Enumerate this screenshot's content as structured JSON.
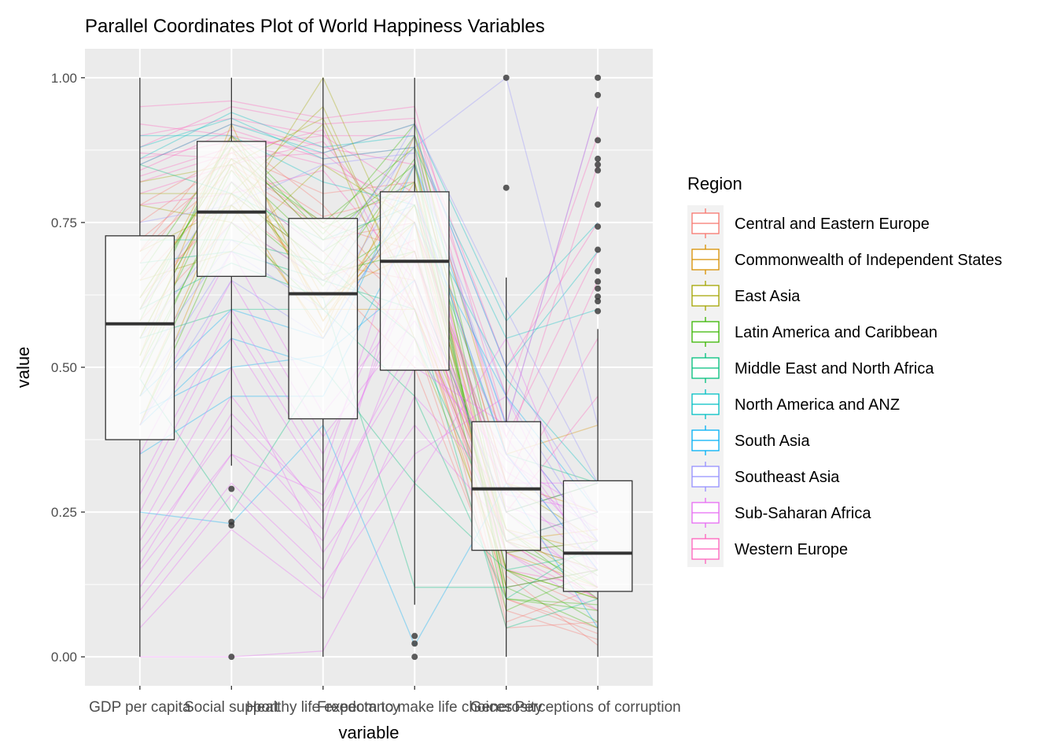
{
  "chart_data": {
    "type": "parallel coordinates + boxplot",
    "title": "Parallel Coordinates Plot of World Happiness Variables",
    "xlabel": "variable",
    "ylabel": "value",
    "ylim": [
      -0.05,
      1.05
    ],
    "y_ticks": [
      "0.00",
      "0.25",
      "0.50",
      "0.75",
      "1.00"
    ],
    "y_tick_values": [
      0,
      0.25,
      0.5,
      0.75,
      1.0
    ],
    "categories": [
      "GDP per capita",
      "Social support",
      "Healthy life expectancy",
      "Freedom to make life choices",
      "Generosity",
      "Perceptions of corruption"
    ],
    "grid": true,
    "legend": {
      "title": "Region",
      "placement": "right",
      "entries": [
        {
          "name": "Central and Eastern Europe",
          "color": "#F8766D"
        },
        {
          "name": "Commonwealth of Independent States",
          "color": "#D89000"
        },
        {
          "name": "East Asia",
          "color": "#A3A500"
        },
        {
          "name": "Latin America and Caribbean",
          "color": "#39B600"
        },
        {
          "name": "Middle East and North Africa",
          "color": "#00BF7D"
        },
        {
          "name": "North America and ANZ",
          "color": "#00BFC4"
        },
        {
          "name": "South Asia",
          "color": "#00B0F6"
        },
        {
          "name": "Southeast Asia",
          "color": "#9590FF"
        },
        {
          "name": "Sub-Saharan Africa",
          "color": "#E76BF3"
        },
        {
          "name": "Western Europe",
          "color": "#FF62BC"
        }
      ]
    },
    "boxplots": [
      {
        "variable": "GDP per capita",
        "min": 0.0,
        "q1": 0.375,
        "median": 0.575,
        "q3": 0.727,
        "max": 1.0,
        "outliers": []
      },
      {
        "variable": "Social support",
        "min": 0.33,
        "q1": 0.657,
        "median": 0.768,
        "q3": 0.89,
        "max": 1.0,
        "outliers": [
          0.29,
          0.233,
          0.227,
          0.0
        ]
      },
      {
        "variable": "Healthy life expectancy",
        "min": 0.0,
        "q1": 0.411,
        "median": 0.627,
        "q3": 0.757,
        "max": 1.0,
        "outliers": []
      },
      {
        "variable": "Freedom to make life choices",
        "min": 0.09,
        "q1": 0.495,
        "median": 0.683,
        "q3": 0.803,
        "max": 1.0,
        "outliers": [
          0.036,
          0.023,
          0.0
        ]
      },
      {
        "variable": "Generosity",
        "min": 0.0,
        "q1": 0.184,
        "median": 0.29,
        "q3": 0.406,
        "max": 0.655,
        "outliers": [
          1.0,
          0.81
        ]
      },
      {
        "variable": "Perceptions of corruption",
        "min": 0.0,
        "q1": 0.113,
        "median": 0.179,
        "q3": 0.304,
        "max": 0.566,
        "outliers": [
          1.0,
          0.97,
          0.892,
          0.86,
          0.85,
          0.84,
          0.781,
          0.743,
          0.703,
          0.666,
          0.648,
          0.636,
          0.622,
          0.614,
          0.597
        ]
      }
    ],
    "series": [
      {
        "name": "Western Europe",
        "values": [
          0.88,
          0.95,
          0.92,
          0.93,
          0.35,
          0.85
        ]
      },
      {
        "name": "Western Europe",
        "values": [
          0.9,
          0.93,
          0.9,
          0.9,
          0.45,
          0.9
        ]
      },
      {
        "name": "Western Europe",
        "values": [
          0.85,
          0.92,
          0.88,
          0.85,
          0.3,
          0.65
        ]
      },
      {
        "name": "Western Europe",
        "values": [
          0.83,
          0.88,
          0.9,
          0.8,
          0.25,
          0.45
        ]
      },
      {
        "name": "Western Europe",
        "values": [
          0.92,
          0.9,
          0.87,
          0.92,
          0.5,
          0.75
        ]
      },
      {
        "name": "Western Europe",
        "values": [
          0.86,
          0.89,
          0.85,
          0.78,
          0.2,
          0.25
        ]
      },
      {
        "name": "Western Europe",
        "values": [
          0.8,
          0.85,
          0.89,
          0.7,
          0.15,
          0.12
        ]
      },
      {
        "name": "Western Europe",
        "values": [
          0.95,
          0.96,
          0.93,
          0.95,
          0.4,
          0.95
        ]
      },
      {
        "name": "Western Europe",
        "values": [
          0.84,
          0.91,
          0.86,
          0.88,
          0.38,
          0.7
        ]
      },
      {
        "name": "Western Europe",
        "values": [
          0.82,
          0.87,
          0.91,
          0.6,
          0.18,
          0.1
        ]
      },
      {
        "name": "Western Europe",
        "values": [
          0.87,
          0.86,
          0.87,
          0.75,
          0.28,
          0.55
        ]
      },
      {
        "name": "Western Europe",
        "values": [
          0.78,
          0.8,
          0.84,
          0.65,
          0.2,
          0.15
        ]
      },
      {
        "name": "North America and ANZ",
        "values": [
          0.88,
          0.93,
          0.86,
          0.88,
          0.55,
          0.6
        ]
      },
      {
        "name": "North America and ANZ",
        "values": [
          0.86,
          0.94,
          0.88,
          0.9,
          0.5,
          0.7
        ]
      },
      {
        "name": "North America and ANZ",
        "values": [
          0.85,
          0.92,
          0.87,
          0.92,
          0.58,
          0.75
        ]
      },
      {
        "name": "North America and ANZ",
        "values": [
          0.9,
          0.9,
          0.82,
          0.78,
          0.48,
          0.3
        ]
      },
      {
        "name": "Central and Eastern Europe",
        "values": [
          0.72,
          0.85,
          0.75,
          0.7,
          0.1,
          0.05
        ]
      },
      {
        "name": "Central and Eastern Europe",
        "values": [
          0.68,
          0.88,
          0.72,
          0.75,
          0.15,
          0.08
        ]
      },
      {
        "name": "Central and Eastern Europe",
        "values": [
          0.7,
          0.9,
          0.78,
          0.6,
          0.2,
          0.1
        ]
      },
      {
        "name": "Central and Eastern Europe",
        "values": [
          0.75,
          0.86,
          0.76,
          0.8,
          0.12,
          0.15
        ]
      },
      {
        "name": "Central and Eastern Europe",
        "values": [
          0.65,
          0.82,
          0.7,
          0.55,
          0.08,
          0.03
        ]
      },
      {
        "name": "Central and Eastern Europe",
        "values": [
          0.6,
          0.8,
          0.68,
          0.65,
          0.05,
          0.06
        ]
      },
      {
        "name": "Central and Eastern Europe",
        "values": [
          0.78,
          0.87,
          0.8,
          0.82,
          0.18,
          0.2
        ]
      },
      {
        "name": "Central and Eastern Europe",
        "values": [
          0.62,
          0.78,
          0.66,
          0.5,
          0.1,
          0.04
        ]
      },
      {
        "name": "Central and Eastern Europe",
        "values": [
          0.58,
          0.75,
          0.65,
          0.72,
          0.06,
          0.12
        ]
      },
      {
        "name": "Central and Eastern Europe",
        "values": [
          0.7,
          0.84,
          0.74,
          0.6,
          0.14,
          0.02
        ]
      },
      {
        "name": "Commonwealth of Independent States",
        "values": [
          0.55,
          0.85,
          0.6,
          0.75,
          0.2,
          0.22
        ]
      },
      {
        "name": "Commonwealth of Independent States",
        "values": [
          0.5,
          0.88,
          0.58,
          0.82,
          0.25,
          0.3
        ]
      },
      {
        "name": "Commonwealth of Independent States",
        "values": [
          0.6,
          0.9,
          0.62,
          0.7,
          0.18,
          0.12
        ]
      },
      {
        "name": "Commonwealth of Independent States",
        "values": [
          0.45,
          0.8,
          0.55,
          0.85,
          0.3,
          0.25
        ]
      },
      {
        "name": "Commonwealth of Independent States",
        "values": [
          0.62,
          0.86,
          0.6,
          0.6,
          0.12,
          0.15
        ]
      },
      {
        "name": "Commonwealth of Independent States",
        "values": [
          0.4,
          0.78,
          0.56,
          0.9,
          0.35,
          0.4
        ]
      },
      {
        "name": "Commonwealth of Independent States",
        "values": [
          0.52,
          0.92,
          0.58,
          0.78,
          0.22,
          0.18
        ]
      },
      {
        "name": "East Asia",
        "values": [
          0.8,
          0.8,
          0.95,
          0.6,
          0.2,
          0.15
        ]
      },
      {
        "name": "East Asia",
        "values": [
          0.78,
          0.75,
          1.0,
          0.65,
          0.25,
          0.3
        ]
      },
      {
        "name": "East Asia",
        "values": [
          0.7,
          0.78,
          0.92,
          0.55,
          0.15,
          0.1
        ]
      },
      {
        "name": "East Asia",
        "values": [
          0.65,
          0.7,
          0.85,
          0.75,
          0.3,
          0.2
        ]
      },
      {
        "name": "East Asia",
        "values": [
          0.82,
          0.85,
          0.93,
          0.62,
          0.22,
          0.12
        ]
      },
      {
        "name": "Latin America and Caribbean",
        "values": [
          0.55,
          0.85,
          0.7,
          0.8,
          0.15,
          0.1
        ]
      },
      {
        "name": "Latin America and Caribbean",
        "values": [
          0.6,
          0.88,
          0.72,
          0.85,
          0.1,
          0.08
        ]
      },
      {
        "name": "Latin America and Caribbean",
        "values": [
          0.5,
          0.8,
          0.68,
          0.9,
          0.2,
          0.12
        ]
      },
      {
        "name": "Latin America and Caribbean",
        "values": [
          0.58,
          0.9,
          0.74,
          0.82,
          0.12,
          0.05
        ]
      },
      {
        "name": "Latin America and Caribbean",
        "values": [
          0.45,
          0.78,
          0.65,
          0.75,
          0.08,
          0.15
        ]
      },
      {
        "name": "Latin America and Caribbean",
        "values": [
          0.62,
          0.86,
          0.75,
          0.88,
          0.18,
          0.2
        ]
      },
      {
        "name": "Latin America and Caribbean",
        "values": [
          0.52,
          0.84,
          0.66,
          0.7,
          0.22,
          0.1
        ]
      },
      {
        "name": "Latin America and Caribbean",
        "values": [
          0.4,
          0.75,
          0.6,
          0.78,
          0.15,
          0.06
        ]
      },
      {
        "name": "Latin America and Caribbean",
        "values": [
          0.66,
          0.89,
          0.73,
          0.92,
          0.25,
          0.14
        ]
      },
      {
        "name": "Latin America and Caribbean",
        "values": [
          0.48,
          0.82,
          0.64,
          0.86,
          0.1,
          0.09
        ]
      },
      {
        "name": "Middle East and North Africa",
        "values": [
          0.72,
          0.72,
          0.68,
          0.55,
          0.2,
          0.25
        ]
      },
      {
        "name": "Middle East and North Africa",
        "values": [
          0.85,
          0.8,
          0.72,
          0.78,
          0.35,
          0.3
        ]
      },
      {
        "name": "Middle East and North Africa",
        "values": [
          0.55,
          0.6,
          0.6,
          0.45,
          0.1,
          0.2
        ]
      },
      {
        "name": "Middle East and North Africa",
        "values": [
          0.6,
          0.68,
          0.62,
          0.12,
          0.12,
          0.15
        ]
      },
      {
        "name": "Middle East and North Africa",
        "values": [
          0.48,
          0.25,
          0.5,
          0.3,
          0.15,
          0.18
        ]
      },
      {
        "name": "Middle East and North Africa",
        "values": [
          0.68,
          0.7,
          0.65,
          0.6,
          0.05,
          0.1
        ]
      },
      {
        "name": "South Asia",
        "values": [
          0.4,
          0.55,
          0.5,
          0.85,
          0.4,
          0.2
        ]
      },
      {
        "name": "South Asia",
        "values": [
          0.35,
          0.45,
          0.45,
          0.75,
          0.45,
          0.25
        ]
      },
      {
        "name": "South Asia",
        "values": [
          0.45,
          0.6,
          0.55,
          0.8,
          0.35,
          0.15
        ]
      },
      {
        "name": "South Asia",
        "values": [
          0.25,
          0.23,
          0.4,
          0.02,
          0.3,
          0.05
        ]
      },
      {
        "name": "South Asia",
        "values": [
          0.42,
          0.5,
          0.52,
          0.65,
          0.25,
          0.3
        ]
      },
      {
        "name": "Southeast Asia",
        "values": [
          0.55,
          0.75,
          0.65,
          0.92,
          0.6,
          0.3
        ]
      },
      {
        "name": "Southeast Asia",
        "values": [
          0.6,
          0.82,
          0.7,
          0.88,
          1.0,
          0.4
        ]
      },
      {
        "name": "Southeast Asia",
        "values": [
          0.45,
          0.7,
          0.6,
          0.85,
          0.45,
          0.2
        ]
      },
      {
        "name": "Southeast Asia",
        "values": [
          0.5,
          0.72,
          0.62,
          0.9,
          0.5,
          0.25
        ]
      },
      {
        "name": "Southeast Asia",
        "values": [
          0.75,
          0.78,
          0.85,
          0.87,
          0.4,
          0.95
        ]
      },
      {
        "name": "Southeast Asia",
        "values": [
          0.4,
          0.65,
          0.55,
          0.8,
          0.35,
          0.15
        ]
      },
      {
        "name": "Sub-Saharan Africa",
        "values": [
          0.2,
          0.45,
          0.25,
          0.55,
          0.3,
          0.15
        ]
      },
      {
        "name": "Sub-Saharan Africa",
        "values": [
          0.15,
          0.35,
          0.2,
          0.6,
          0.35,
          0.18
        ]
      },
      {
        "name": "Sub-Saharan Africa",
        "values": [
          0.25,
          0.55,
          0.3,
          0.65,
          0.25,
          0.12
        ]
      },
      {
        "name": "Sub-Saharan Africa",
        "values": [
          0.1,
          0.3,
          0.15,
          0.5,
          0.4,
          0.2
        ]
      },
      {
        "name": "Sub-Saharan Africa",
        "values": [
          0.3,
          0.6,
          0.35,
          0.7,
          0.2,
          0.1
        ]
      },
      {
        "name": "Sub-Saharan Africa",
        "values": [
          0.05,
          0.22,
          0.1,
          0.45,
          0.28,
          0.25
        ]
      },
      {
        "name": "Sub-Saharan Africa",
        "values": [
          0.35,
          0.65,
          0.38,
          0.58,
          0.32,
          0.22
        ]
      },
      {
        "name": "Sub-Saharan Africa",
        "values": [
          0.18,
          0.4,
          0.22,
          0.75,
          0.3,
          0.3
        ]
      },
      {
        "name": "Sub-Saharan Africa",
        "values": [
          0.22,
          0.5,
          0.18,
          0.4,
          0.22,
          0.14
        ]
      },
      {
        "name": "Sub-Saharan Africa",
        "values": [
          0.12,
          0.35,
          0.28,
          0.68,
          0.38,
          0.16
        ]
      },
      {
        "name": "Sub-Saharan Africa",
        "values": [
          0.28,
          0.58,
          0.32,
          0.8,
          0.26,
          0.2
        ]
      },
      {
        "name": "Sub-Saharan Africa",
        "values": [
          0.08,
          0.28,
          0.12,
          0.35,
          0.45,
          0.12
        ]
      },
      {
        "name": "Sub-Saharan Africa",
        "values": [
          0.4,
          0.7,
          0.42,
          0.62,
          0.18,
          0.08
        ]
      },
      {
        "name": "Sub-Saharan Africa",
        "values": [
          0.16,
          0.42,
          0.26,
          0.52,
          0.34,
          0.24
        ]
      },
      {
        "name": "Sub-Saharan Africa",
        "values": [
          0.0,
          0.0,
          0.01,
          0.3,
          0.55,
          0.17
        ]
      }
    ]
  }
}
